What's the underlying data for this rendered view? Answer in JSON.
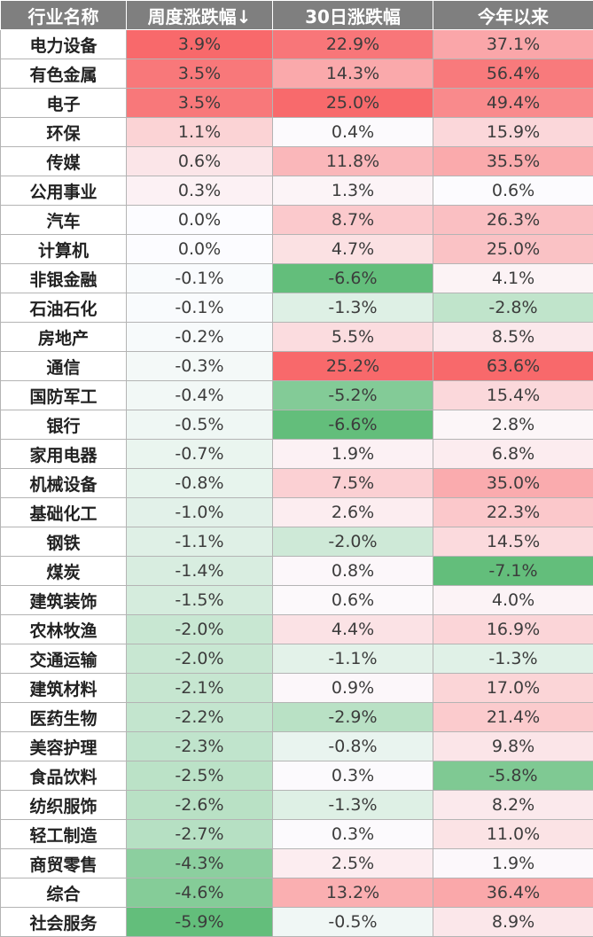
{
  "table": {
    "headers": [
      "行业名称",
      "周度涨跌幅↓",
      "30日涨跌幅",
      "今年以来"
    ],
    "rows": [
      [
        "电力设备",
        "3.9%",
        "22.9%",
        "37.1%"
      ],
      [
        "有色金属",
        "3.5%",
        "14.3%",
        "56.4%"
      ],
      [
        "电子",
        "3.5%",
        "25.0%",
        "49.4%"
      ],
      [
        "环保",
        "1.1%",
        "0.4%",
        "15.9%"
      ],
      [
        "传媒",
        "0.6%",
        "11.8%",
        "35.5%"
      ],
      [
        "公用事业",
        "0.3%",
        "1.3%",
        "0.6%"
      ],
      [
        "汽车",
        "0.0%",
        "8.7%",
        "26.3%"
      ],
      [
        "计算机",
        "0.0%",
        "4.7%",
        "25.0%"
      ],
      [
        "非银金融",
        "-0.1%",
        "-6.6%",
        "4.1%"
      ],
      [
        "石油石化",
        "-0.1%",
        "-1.3%",
        "-2.8%"
      ],
      [
        "房地产",
        "-0.2%",
        "5.5%",
        "8.5%"
      ],
      [
        "通信",
        "-0.3%",
        "25.2%",
        "63.6%"
      ],
      [
        "国防军工",
        "-0.4%",
        "-5.2%",
        "15.4%"
      ],
      [
        "银行",
        "-0.5%",
        "-6.6%",
        "2.8%"
      ],
      [
        "家用电器",
        "-0.7%",
        "1.9%",
        "6.8%"
      ],
      [
        "机械设备",
        "-0.8%",
        "7.5%",
        "35.0%"
      ],
      [
        "基础化工",
        "-1.0%",
        "2.6%",
        "22.3%"
      ],
      [
        "钢铁",
        "-1.1%",
        "-2.0%",
        "14.5%"
      ],
      [
        "煤炭",
        "-1.4%",
        "0.8%",
        "-7.1%"
      ],
      [
        "建筑装饰",
        "-1.5%",
        "0.6%",
        "4.0%"
      ],
      [
        "农林牧渔",
        "-2.0%",
        "4.4%",
        "16.9%"
      ],
      [
        "交通运输",
        "-2.0%",
        "-1.1%",
        "-1.3%"
      ],
      [
        "建筑材料",
        "-2.1%",
        "0.9%",
        "17.0%"
      ],
      [
        "医药生物",
        "-2.2%",
        "-2.9%",
        "21.4%"
      ],
      [
        "美容护理",
        "-2.3%",
        "-0.8%",
        "9.8%"
      ],
      [
        "食品饮料",
        "-2.5%",
        "0.3%",
        "-5.8%"
      ],
      [
        "纺织服饰",
        "-2.6%",
        "-1.3%",
        "8.2%"
      ],
      [
        "轻工制造",
        "-2.7%",
        "0.3%",
        "11.0%"
      ],
      [
        "商贸零售",
        "-4.3%",
        "2.5%",
        "1.9%"
      ],
      [
        "综合",
        "-4.6%",
        "13.2%",
        "36.4%"
      ],
      [
        "社会服务",
        "-5.9%",
        "-0.5%",
        "8.9%"
      ]
    ]
  },
  "colors": {
    "header_bg": "#7f7f7f",
    "header_text": "#ffffff",
    "positive_max": "#f8696b",
    "negative_max": "#63be7b",
    "neutral": "#fcfcff"
  }
}
